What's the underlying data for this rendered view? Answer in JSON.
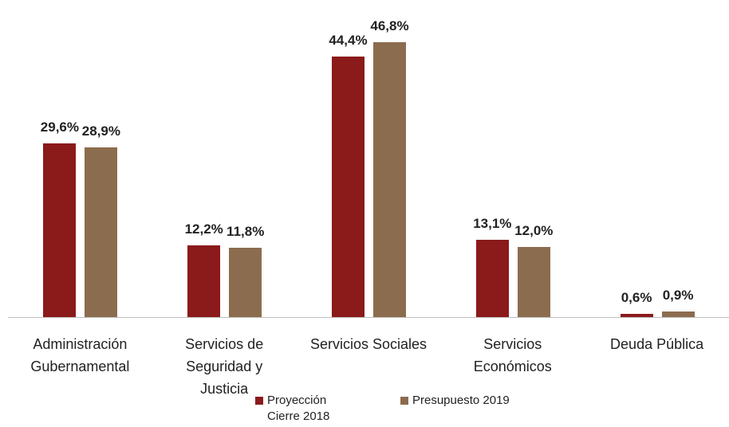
{
  "chart_data": {
    "type": "bar",
    "categories": [
      "Administración\nGubernamental",
      "Servicios de\nSeguridad y\nJusticia",
      "Servicios Sociales",
      "Servicios\nEconómicos",
      "Deuda Pública"
    ],
    "series": [
      {
        "name": "Proyección\nCierre 2018",
        "color": "#8b1a1b",
        "values": [
          29.6,
          12.2,
          44.4,
          13.1,
          0.6
        ],
        "value_labels": [
          "29,6%",
          "12,2%",
          "44,4%",
          "13,1%",
          "0,6%"
        ]
      },
      {
        "name": "Presupuesto 2019",
        "color": "#8c6c4f",
        "values": [
          28.9,
          11.8,
          46.8,
          12.0,
          0.9
        ],
        "value_labels": [
          "28,9%",
          "11,8%",
          "46,8%",
          "12,0%",
          "0,9%"
        ]
      }
    ],
    "legend": "bottom"
  }
}
